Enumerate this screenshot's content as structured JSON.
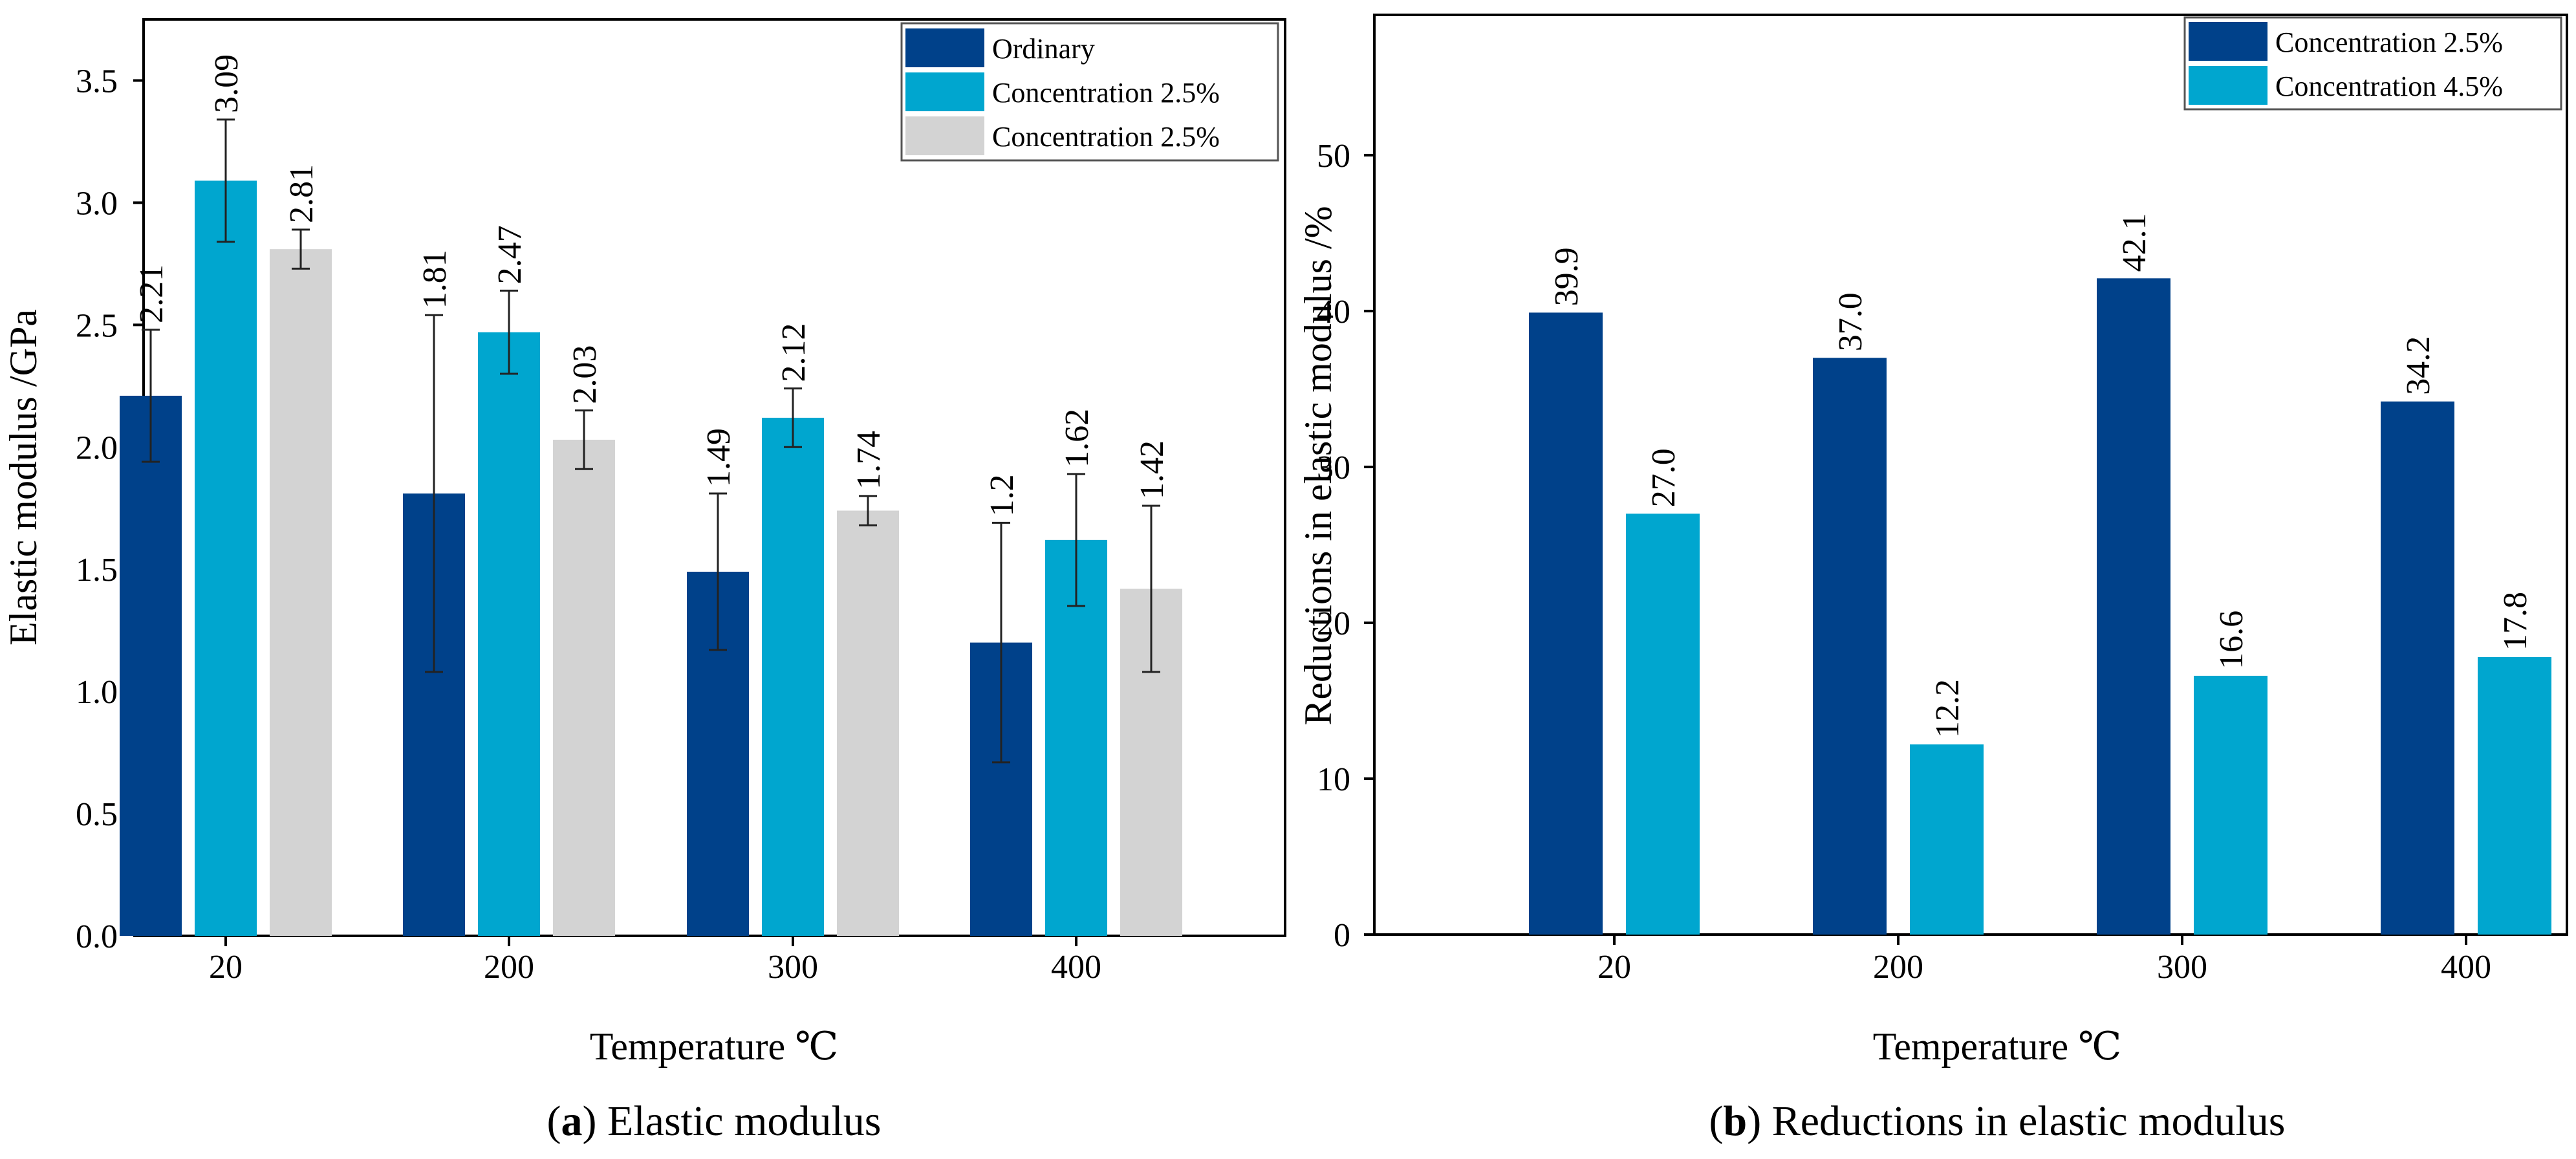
{
  "chart_data": [
    {
      "type": "bar",
      "title": "",
      "categories": [
        "20",
        "200",
        "300",
        "400"
      ],
      "xlabel": "Temperature ℃",
      "ylabel": "Elastic modulus /GPa",
      "ylim": [
        0,
        3.75
      ],
      "yticks": [
        "0.0",
        "0.5",
        "1.0",
        "1.5",
        "2.0",
        "2.5",
        "3.0",
        "3.5"
      ],
      "grid": false,
      "legend_position": "top-right",
      "series": [
        {
          "name": "Ordinary",
          "color": "#00418a",
          "values": [
            2.21,
            1.81,
            1.49,
            1.2
          ],
          "labels": [
            "2.21",
            "1.81",
            "1.49",
            "1.2"
          ],
          "errors": [
            0.27,
            0.73,
            0.32,
            0.49
          ]
        },
        {
          "name": "Concentration 2.5%",
          "color": "#00a6cf",
          "values": [
            3.09,
            2.47,
            2.12,
            1.62
          ],
          "labels": [
            "3.09",
            "2.47",
            "2.12",
            "1.62"
          ],
          "errors": [
            0.25,
            0.17,
            0.12,
            0.27
          ]
        },
        {
          "name": "Concentration 2.5%",
          "color": "#d3d3d3",
          "values": [
            2.81,
            2.03,
            1.74,
            1.42
          ],
          "labels": [
            "2.81",
            "2.03",
            "1.74",
            "1.42"
          ],
          "errors": [
            0.08,
            0.12,
            0.06,
            0.34
          ]
        }
      ],
      "caption_letter": "a",
      "caption_text": "Elastic modulus"
    },
    {
      "type": "bar",
      "title": "",
      "categories": [
        "20",
        "200",
        "300",
        "400"
      ],
      "xlabel": "Temperature ℃",
      "ylabel": "Reductions in elastic modulus /%",
      "ylim": [
        0,
        59
      ],
      "yticks": [
        "0",
        "10",
        "20",
        "30",
        "40",
        "50"
      ],
      "grid": false,
      "legend_position": "top-right",
      "series": [
        {
          "name": "Concentration 2.5%",
          "color": "#00418a",
          "values": [
            39.9,
            37.0,
            42.1,
            34.2
          ],
          "labels": [
            "39.9",
            "37.0",
            "42.1",
            "34.2"
          ]
        },
        {
          "name": "Concentration 4.5%",
          "color": "#00a6cf",
          "values": [
            27.0,
            12.2,
            16.6,
            17.8
          ],
          "labels": [
            "27.0",
            "12.2",
            "16.6",
            "17.8"
          ]
        }
      ],
      "caption_letter": "b",
      "caption_text": "Reductions in elastic modulus"
    }
  ]
}
